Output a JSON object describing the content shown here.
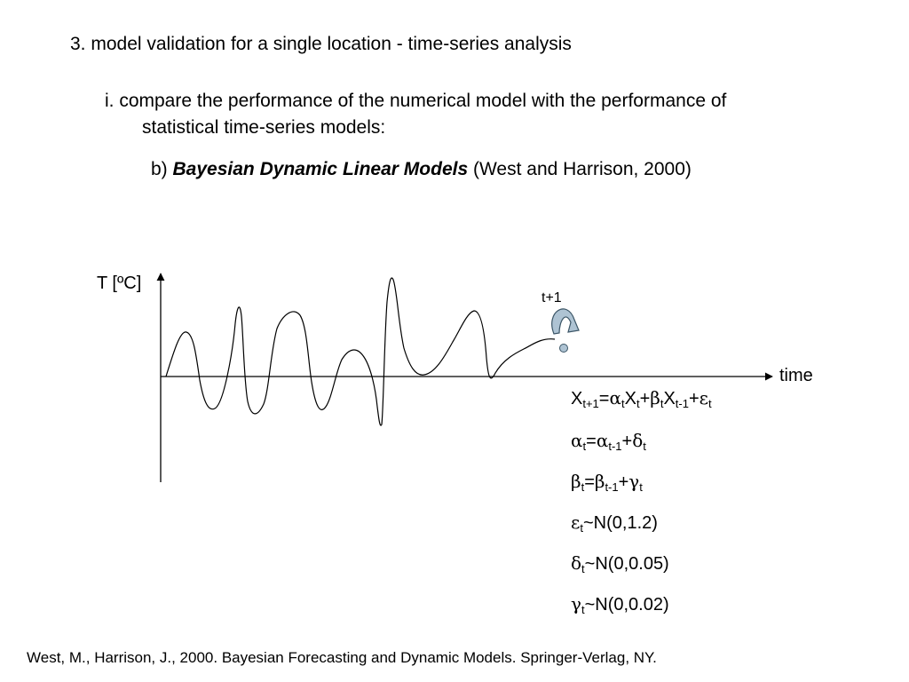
{
  "heading": "3. model validation for a single location - time-series analysis",
  "subpoint_i": {
    "line1": "i. compare the performance of the numerical model with the performance of",
    "line2": "statistical time-series models:"
  },
  "subpoint_b": {
    "prefix": "b) ",
    "title": "Bayesian Dynamic Linear Models",
    "citation": " (West and Harrison, 2000)"
  },
  "diagram": {
    "y_label": "T [ºC]",
    "x_label": "time",
    "step_label": "t+1",
    "line_color": "#000000",
    "arrow_fill": "#aec3d3",
    "arrow_stroke": "#3b5566",
    "dot_fill": "#aec3d3"
  },
  "equations": {
    "eq1": {
      "x": "X",
      "s1": "t+1",
      "eq": "=",
      "a": "α",
      "s2": "t",
      "x2": "X",
      "s3": "t",
      "plus1": "+",
      "b": "β",
      "s4": "t",
      "x3": "X",
      "s5": "t-1",
      "plus2": "+",
      "e": "ε",
      "s6": "t"
    },
    "eq2": {
      "a": "α",
      "s1": "t",
      "eq": "=",
      "a2": "α",
      "s2": "t-1",
      "plus": "+",
      "d": "δ",
      "s3": "t"
    },
    "eq3": {
      "b": "β",
      "s1": "t",
      "eq": "=",
      "b2": "β",
      "s2": "t-1",
      "plus": "+",
      "g": "γ",
      "s3": "t"
    },
    "eq4": {
      "e": "ε",
      "s1": "t",
      "rest": "~N(0,1.2)"
    },
    "eq5": {
      "d": "δ",
      "s1": "t",
      "rest": "~N(0,0.05)"
    },
    "eq6": {
      "g": "γ",
      "s1": "t",
      "rest": "~N(0,0.02)"
    }
  },
  "reference": "West, M., Harrison, J., 2000. Bayesian Forecasting and Dynamic Models. Springer-Verlag, NY."
}
